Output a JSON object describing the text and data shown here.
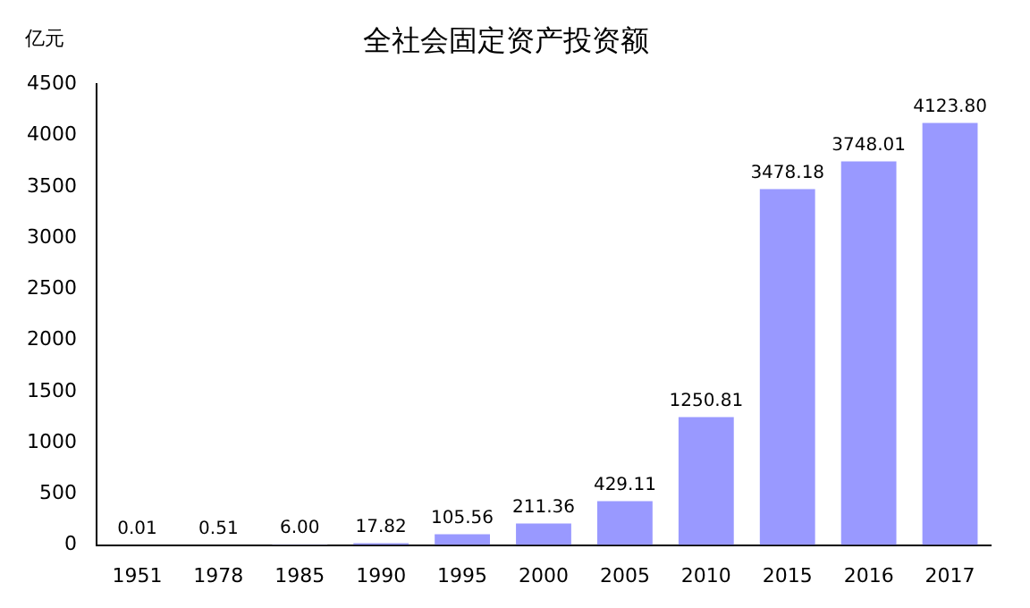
{
  "chart_data": {
    "type": "bar",
    "title": "全社会固定资产投资额",
    "ylabel": "亿元",
    "categories": [
      "1951",
      "1978",
      "1985",
      "1990",
      "1995",
      "2000",
      "2005",
      "2010",
      "2015",
      "2016",
      "2017"
    ],
    "values": [
      0.01,
      0.51,
      6.0,
      17.82,
      105.56,
      211.36,
      429.11,
      1250.81,
      3478.18,
      3748.01,
      4123.8
    ],
    "value_labels": [
      "0.01",
      "0.51",
      "6.00",
      "17.82",
      "105.56",
      "211.36",
      "429.11",
      "1250.81",
      "3478.18",
      "3748.01",
      "4123.80"
    ],
    "color": "#9999ff",
    "ylim": [
      0,
      4500
    ],
    "yticks": [
      0,
      500,
      1000,
      1500,
      2000,
      2500,
      3000,
      3500,
      4000,
      4500
    ],
    "grid": false,
    "legend": false
  }
}
